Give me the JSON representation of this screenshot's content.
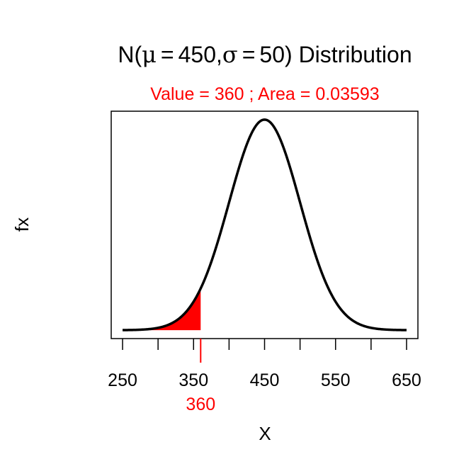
{
  "title": {
    "prefix": "N(",
    "mu_symbol": "μ",
    "equals": "=",
    "mu_value": "450",
    "comma": ",",
    "sigma_symbol": "σ",
    "sigma_value": "50",
    "suffix": ") Distribution"
  },
  "subtitle": "Value = 360 ; Area = 0.03593",
  "chart_data": {
    "type": "area",
    "distribution": "normal",
    "mu": 450,
    "sigma": 50,
    "cutoff_value": 360,
    "cutoff_label": "360",
    "tail": "lower",
    "area": 0.03593,
    "xlabel": "X",
    "ylabel": "fx",
    "xlim": [
      250,
      650
    ],
    "x_tick_labels": [
      "250",
      "350",
      "450",
      "550",
      "650"
    ],
    "x_tick_values": [
      250,
      300,
      350,
      400,
      450,
      500,
      550,
      600,
      650
    ],
    "y_ticks_shown": false,
    "grid": false,
    "box": true
  },
  "colors": {
    "curve": "#000000",
    "shade": "#ff0000",
    "highlight": "#ff0000",
    "axis": "#000000",
    "background": "#ffffff"
  }
}
